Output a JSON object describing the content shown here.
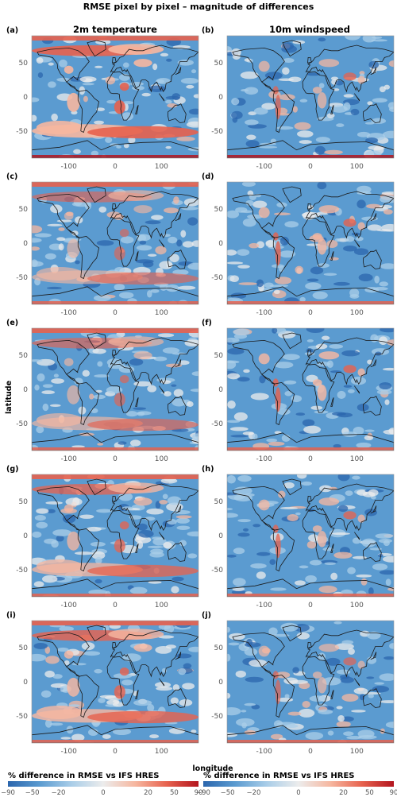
{
  "title": "RMSE pixel by pixel – magnitude of differences",
  "columns": [
    "2m temperature",
    "10m windspeed"
  ],
  "axes": {
    "ylabel": "latitude",
    "xlabel": "longitude",
    "xticks": [
      "-100",
      "0",
      "100"
    ],
    "yticks": [
      "50",
      "0",
      "-50"
    ]
  },
  "colorbar": {
    "label": "% difference in RMSE vs IFS HRES",
    "ticks": [
      "−90",
      "−50",
      "−20",
      "0",
      "20",
      "50",
      "90"
    ],
    "colors": [
      "#2b66ad",
      "#5b9bd0",
      "#a9cde8",
      "#ececec",
      "#f6b7a0",
      "#e7624e",
      "#b3151e"
    ]
  },
  "chart_data": {
    "type": "heatmap",
    "title": "RMSE pixel by pixel – magnitude of differences",
    "xlabel": "longitude",
    "ylabel": "latitude",
    "xlim": [
      -180,
      180
    ],
    "ylim": [
      -90,
      90
    ],
    "xticks": [
      -100,
      0,
      100
    ],
    "yticks": [
      -50,
      0,
      50
    ],
    "color_scale": {
      "label": "% difference in RMSE vs IFS HRES",
      "ticks": [
        -90,
        -50,
        -20,
        0,
        20,
        50,
        90
      ]
    },
    "panels": [
      {
        "label": "(a)",
        "column": "2m temperature"
      },
      {
        "label": "(b)",
        "column": "10m windspeed"
      },
      {
        "label": "(c)",
        "column": "2m temperature"
      },
      {
        "label": "(d)",
        "column": "10m windspeed"
      },
      {
        "label": "(e)",
        "column": "2m temperature"
      },
      {
        "label": "(f)",
        "column": "10m windspeed"
      },
      {
        "label": "(g)",
        "column": "2m temperature"
      },
      {
        "label": "(h)",
        "column": "10m windspeed"
      },
      {
        "label": "(i)",
        "column": "2m temperature"
      },
      {
        "label": "(j)",
        "column": "10m windspeed"
      }
    ]
  }
}
